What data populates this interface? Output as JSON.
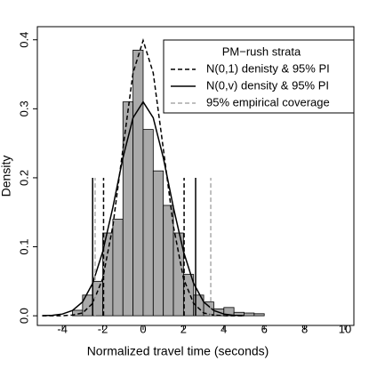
{
  "chart_data": {
    "type": "histogram",
    "xlabel": "Normalized travel time (seconds)",
    "ylabel": "Density",
    "bins": [
      -3.5,
      -3,
      -2.5,
      -2,
      -1.5,
      -1,
      -0.5,
      0,
      0.5,
      1,
      1.5,
      2,
      2.5,
      3,
      3.5,
      4,
      4.5,
      5,
      5.5,
      6
    ],
    "values": [
      0.008,
      0.03,
      0.05,
      0.12,
      0.14,
      0.31,
      0.385,
      0.27,
      0.21,
      0.16,
      0.12,
      0.06,
      0.03,
      0.02,
      0.01,
      0.012,
      0.005,
      0.004,
      0.003
    ],
    "color": "#aaaaaa",
    "xlim": [
      -5.24,
      10.44
    ],
    "ylim": [
      -0.014,
      0.419
    ],
    "xticks": [
      -4,
      -2,
      0,
      2,
      4,
      6,
      8,
      10
    ],
    "yticks": [
      {
        "value": 0,
        "label": "0.0"
      },
      0.1,
      0.2,
      0.3,
      0.4
    ],
    "legend_title": "PM−rush strata",
    "legend_position": "upper right",
    "series": [
      {
        "name": "N(0,1) denisty & 95% PI",
        "color": "#000000",
        "dashed": true,
        "x": [
          -5,
          -4.5,
          -4,
          -3.5,
          -3,
          -2.5,
          -2,
          -1.5,
          -1,
          -0.5,
          0,
          0.5,
          1,
          1.5,
          2,
          2.5,
          3,
          3.5,
          4,
          4.5,
          5
        ],
        "values": [
          0,
          0,
          0.0001,
          0.001,
          0.004,
          0.018,
          0.054,
          0.13,
          0.242,
          0.352,
          0.399,
          0.352,
          0.242,
          0.13,
          0.054,
          0.018,
          0.004,
          0.001,
          0.0001,
          0,
          0
        ],
        "interval": [
          -1.96,
          2.03
        ],
        "interval_height": 0.2
      },
      {
        "name": "N(0,v) density & 95% PI",
        "color": "#000000",
        "dashed": false,
        "x": [
          -5,
          -4.5,
          -4,
          -3.5,
          -3,
          -2.5,
          -2,
          -1.5,
          -1,
          -0.5,
          0,
          0.5,
          1,
          1.5,
          2,
          2.5,
          3,
          3.5,
          4,
          4.5,
          5
        ],
        "values": [
          0.0002,
          0.0007,
          0.0025,
          0.0077,
          0.02,
          0.047,
          0.093,
          0.157,
          0.229,
          0.287,
          0.31,
          0.287,
          0.229,
          0.157,
          0.093,
          0.047,
          0.02,
          0.0077,
          0.0025,
          0.0007,
          0.0002
        ],
        "interval": [
          -2.5,
          2.6
        ],
        "interval_height": 0.2
      },
      {
        "name": "95% empirical coverage",
        "color": "#aaaaaa",
        "dashed": true,
        "interval": [
          -2.38,
          3.35
        ],
        "interval_height": 0.2
      }
    ]
  }
}
